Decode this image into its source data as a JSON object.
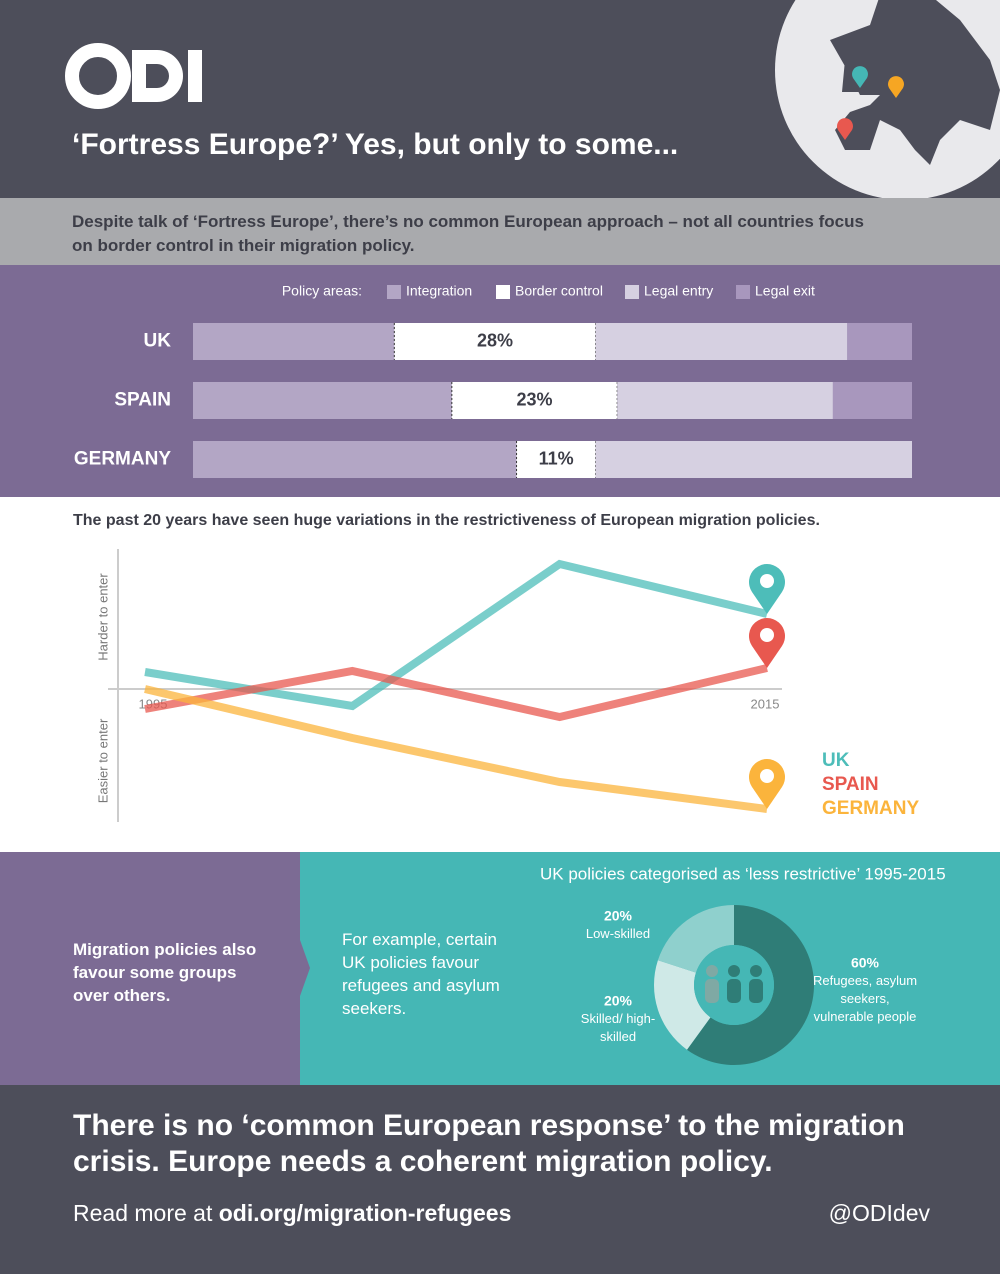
{
  "header": {
    "title": "‘Fortress Europe?’ Yes, but only to some...",
    "subtitle": "Despite talk of ‘Fortress Europe’, there’s no common European approach – not all countries focus on border control in their migration policy."
  },
  "chart_data": [
    {
      "type": "stacked-bar",
      "legend_title": "Policy areas:",
      "categories": [
        "UK",
        "SPAIN",
        "GERMANY"
      ],
      "xlim": [
        0,
        100
      ],
      "series": [
        {
          "name": "Integration",
          "color": "#b3a6c5",
          "values": [
            28,
            36,
            45
          ]
        },
        {
          "name": "Border control",
          "color": "#ffffff",
          "values": [
            28,
            23,
            11
          ],
          "value_labels": [
            "28%",
            "23%",
            "11%"
          ]
        },
        {
          "name": "Legal entry",
          "color": "#d6d0e1",
          "values": [
            35,
            30,
            44
          ]
        },
        {
          "name": "Legal exit",
          "color": "#a897bd",
          "values": [
            9,
            11,
            0
          ]
        }
      ]
    },
    {
      "type": "line",
      "title": "The past 20 years have seen huge variations in the restrictiveness of European migration policies.",
      "y_label_top": "Harder to enter",
      "y_label_bottom": "Easier to enter",
      "categories": [
        "1995",
        null,
        null,
        "2015"
      ],
      "ylim": [
        -1.4,
        1.4
      ],
      "series": [
        {
          "name": "UK",
          "color": "#4dbdb9",
          "values": [
            0.17,
            -0.17,
            1.25,
            0.75
          ]
        },
        {
          "name": "SPAIN",
          "color": "#e8584f",
          "values": [
            -0.2,
            0.18,
            -0.28,
            0.21
          ]
        },
        {
          "name": "GERMANY",
          "color": "#fbb43c",
          "values": [
            0,
            -0.49,
            -0.93,
            -1.2
          ]
        }
      ]
    },
    {
      "type": "pie",
      "title": "UK policies categorised as ‘less restrictive’ 1995-2015",
      "categories": [
        "Refugees, asylum seekers, vulnerable people",
        "Skilled/ high-skilled",
        "Low-skilled"
      ],
      "values": [
        60,
        20,
        20
      ],
      "value_labels": [
        "60%",
        "20%",
        "20%"
      ],
      "colors": [
        "#2f7d77",
        "#cfe9e7",
        "#8fd0cd"
      ]
    }
  ],
  "groups_panel": {
    "text": "Migration policies also favour some groups over others.",
    "example": "For example, certain UK policies favour refugees and asylum seekers."
  },
  "footer": {
    "headline": "There is no ‘common European response’ to the migration crisis. Europe needs a coherent migration policy.",
    "read_more_prefix": "Read more at",
    "read_more_link": "odi.org/migration-refugees",
    "handle": "@ODIdev"
  }
}
